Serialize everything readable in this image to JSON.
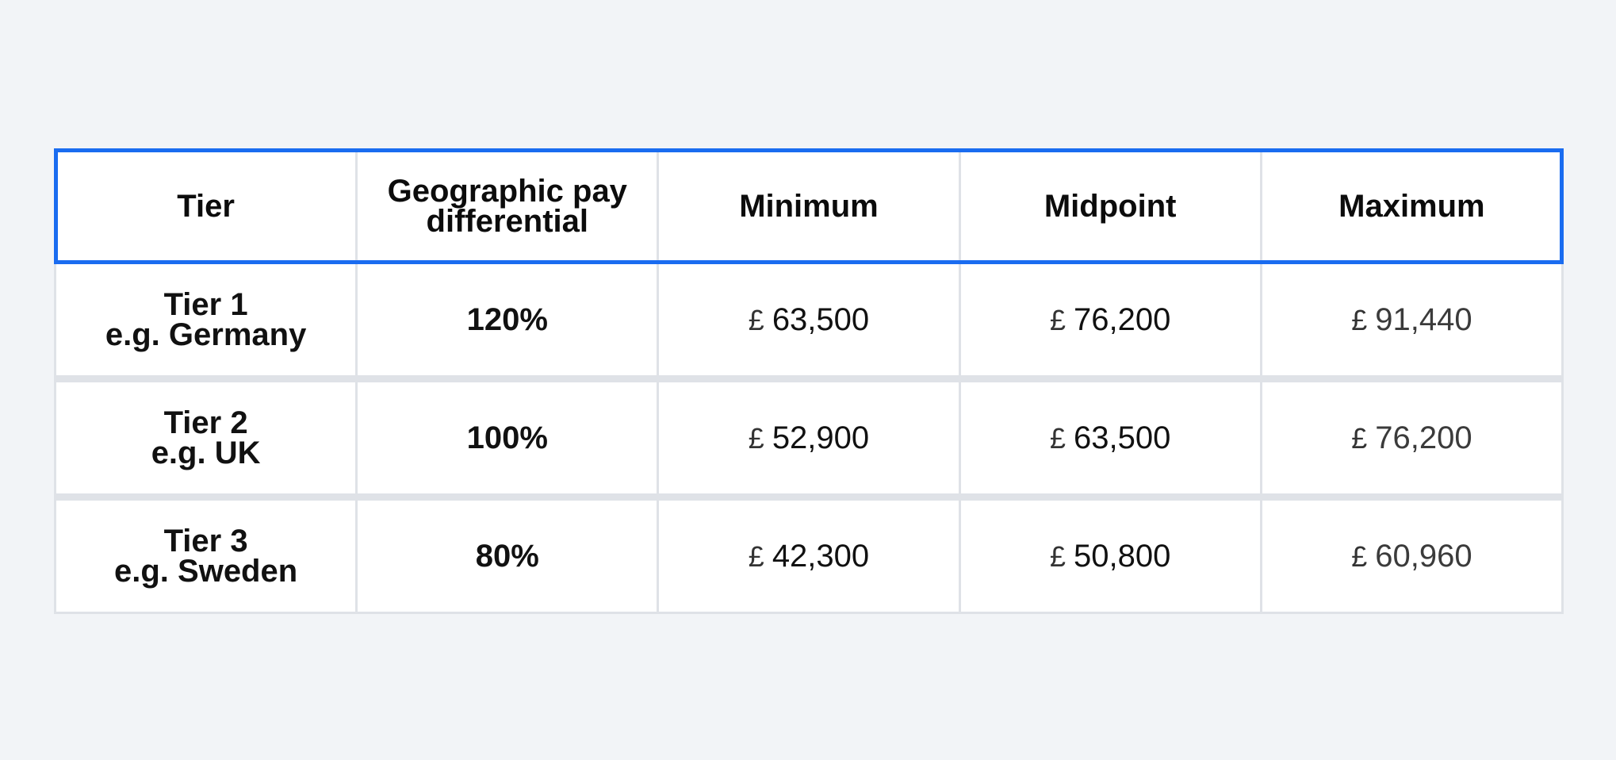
{
  "table": {
    "headers": {
      "tier": "Tier",
      "differential": "Geographic pay differential",
      "minimum": "Minimum",
      "midpoint": "Midpoint",
      "maximum": "Maximum"
    },
    "rows": [
      {
        "tier": "Tier 1",
        "example": "e.g. Germany",
        "differential": "120%",
        "minimum": "63,500",
        "midpoint": "76,200",
        "maximum": "91,440"
      },
      {
        "tier": "Tier 2",
        "example": "e.g. UK",
        "differential": "100%",
        "minimum": "52,900",
        "midpoint": "63,500",
        "maximum": "76,200"
      },
      {
        "tier": "Tier 3",
        "example": "e.g. Sweden",
        "differential": "80%",
        "minimum": "42,300",
        "midpoint": "50,800",
        "maximum": "60,960"
      }
    ],
    "currency_symbol": "£"
  },
  "colors": {
    "header_highlight": "#1a6cf0",
    "grid": "#dfe2e7",
    "background": "#f2f4f7"
  }
}
